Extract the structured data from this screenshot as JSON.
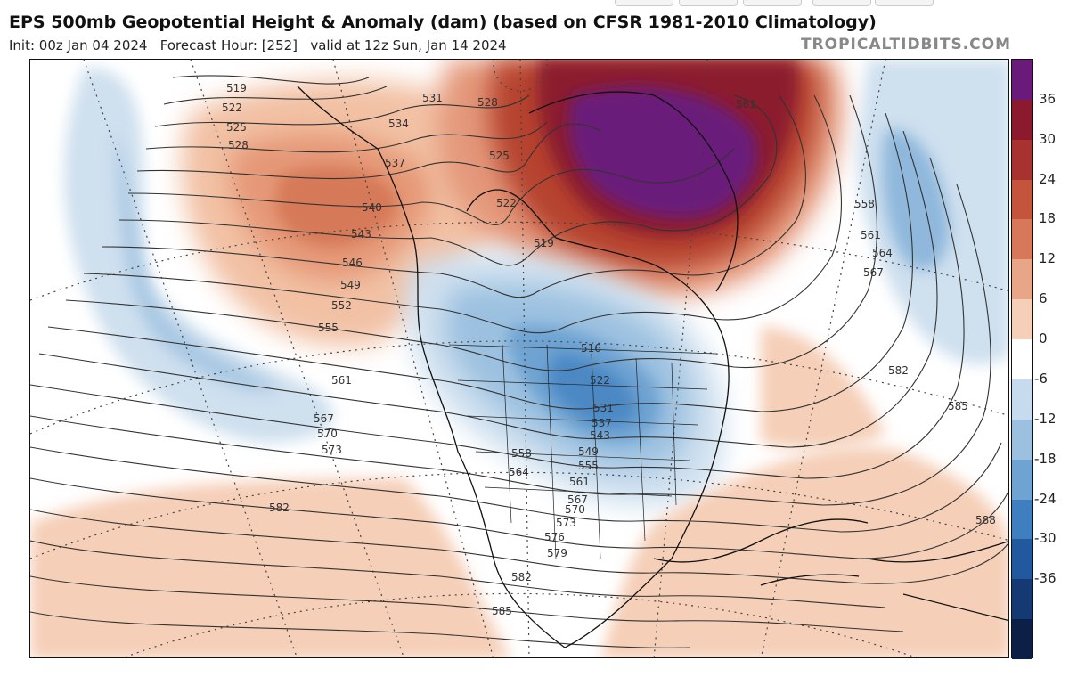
{
  "header": {
    "title": "EPS 500mb Geopotential Height & Anomaly (dam) (based on CFSR 1981-2010 Climatology)",
    "init": "Init: 00z Jan 04 2024",
    "forecast": "Forecast Hour: [252]",
    "valid": "valid at 12z Sun, Jan 14 2024",
    "brand": "TROPICALTIDBITS.COM"
  },
  "colorbar": {
    "labels": [
      "36",
      "30",
      "24",
      "18",
      "12",
      "6",
      "0",
      "-6",
      "-12",
      "-18",
      "-24",
      "-30",
      "-36"
    ],
    "colors": [
      "#6a1a7a",
      "#8b1a2e",
      "#a83230",
      "#c4553c",
      "#d8785a",
      "#e9a588",
      "#f5cfb7",
      "#ffffff",
      "#c6dcee",
      "#9cc1e0",
      "#6ea3d2",
      "#3f7fbf",
      "#21589e",
      "#153a73",
      "#0b1f47"
    ]
  },
  "contour_labels": [
    {
      "text": "519"
    },
    {
      "text": "522"
    },
    {
      "text": "525"
    },
    {
      "text": "528"
    },
    {
      "text": "531"
    },
    {
      "text": "528"
    },
    {
      "text": "534"
    },
    {
      "text": "537"
    },
    {
      "text": "540"
    },
    {
      "text": "543"
    },
    {
      "text": "546"
    },
    {
      "text": "549"
    },
    {
      "text": "552"
    },
    {
      "text": "555"
    },
    {
      "text": "561"
    },
    {
      "text": "567"
    },
    {
      "text": "570"
    },
    {
      "text": "573"
    },
    {
      "text": "582"
    },
    {
      "text": "525"
    },
    {
      "text": "522"
    },
    {
      "text": "519"
    },
    {
      "text": "516"
    },
    {
      "text": "522"
    },
    {
      "text": "531"
    },
    {
      "text": "537"
    },
    {
      "text": "543"
    },
    {
      "text": "549"
    },
    {
      "text": "555"
    },
    {
      "text": "558"
    },
    {
      "text": "564"
    },
    {
      "text": "561"
    },
    {
      "text": "567"
    },
    {
      "text": "570"
    },
    {
      "text": "573"
    },
    {
      "text": "576"
    },
    {
      "text": "579"
    },
    {
      "text": "582"
    },
    {
      "text": "585"
    },
    {
      "text": "561"
    },
    {
      "text": "558"
    },
    {
      "text": "561"
    },
    {
      "text": "564"
    },
    {
      "text": "567"
    },
    {
      "text": "582"
    },
    {
      "text": "585"
    },
    {
      "text": "588"
    }
  ]
}
